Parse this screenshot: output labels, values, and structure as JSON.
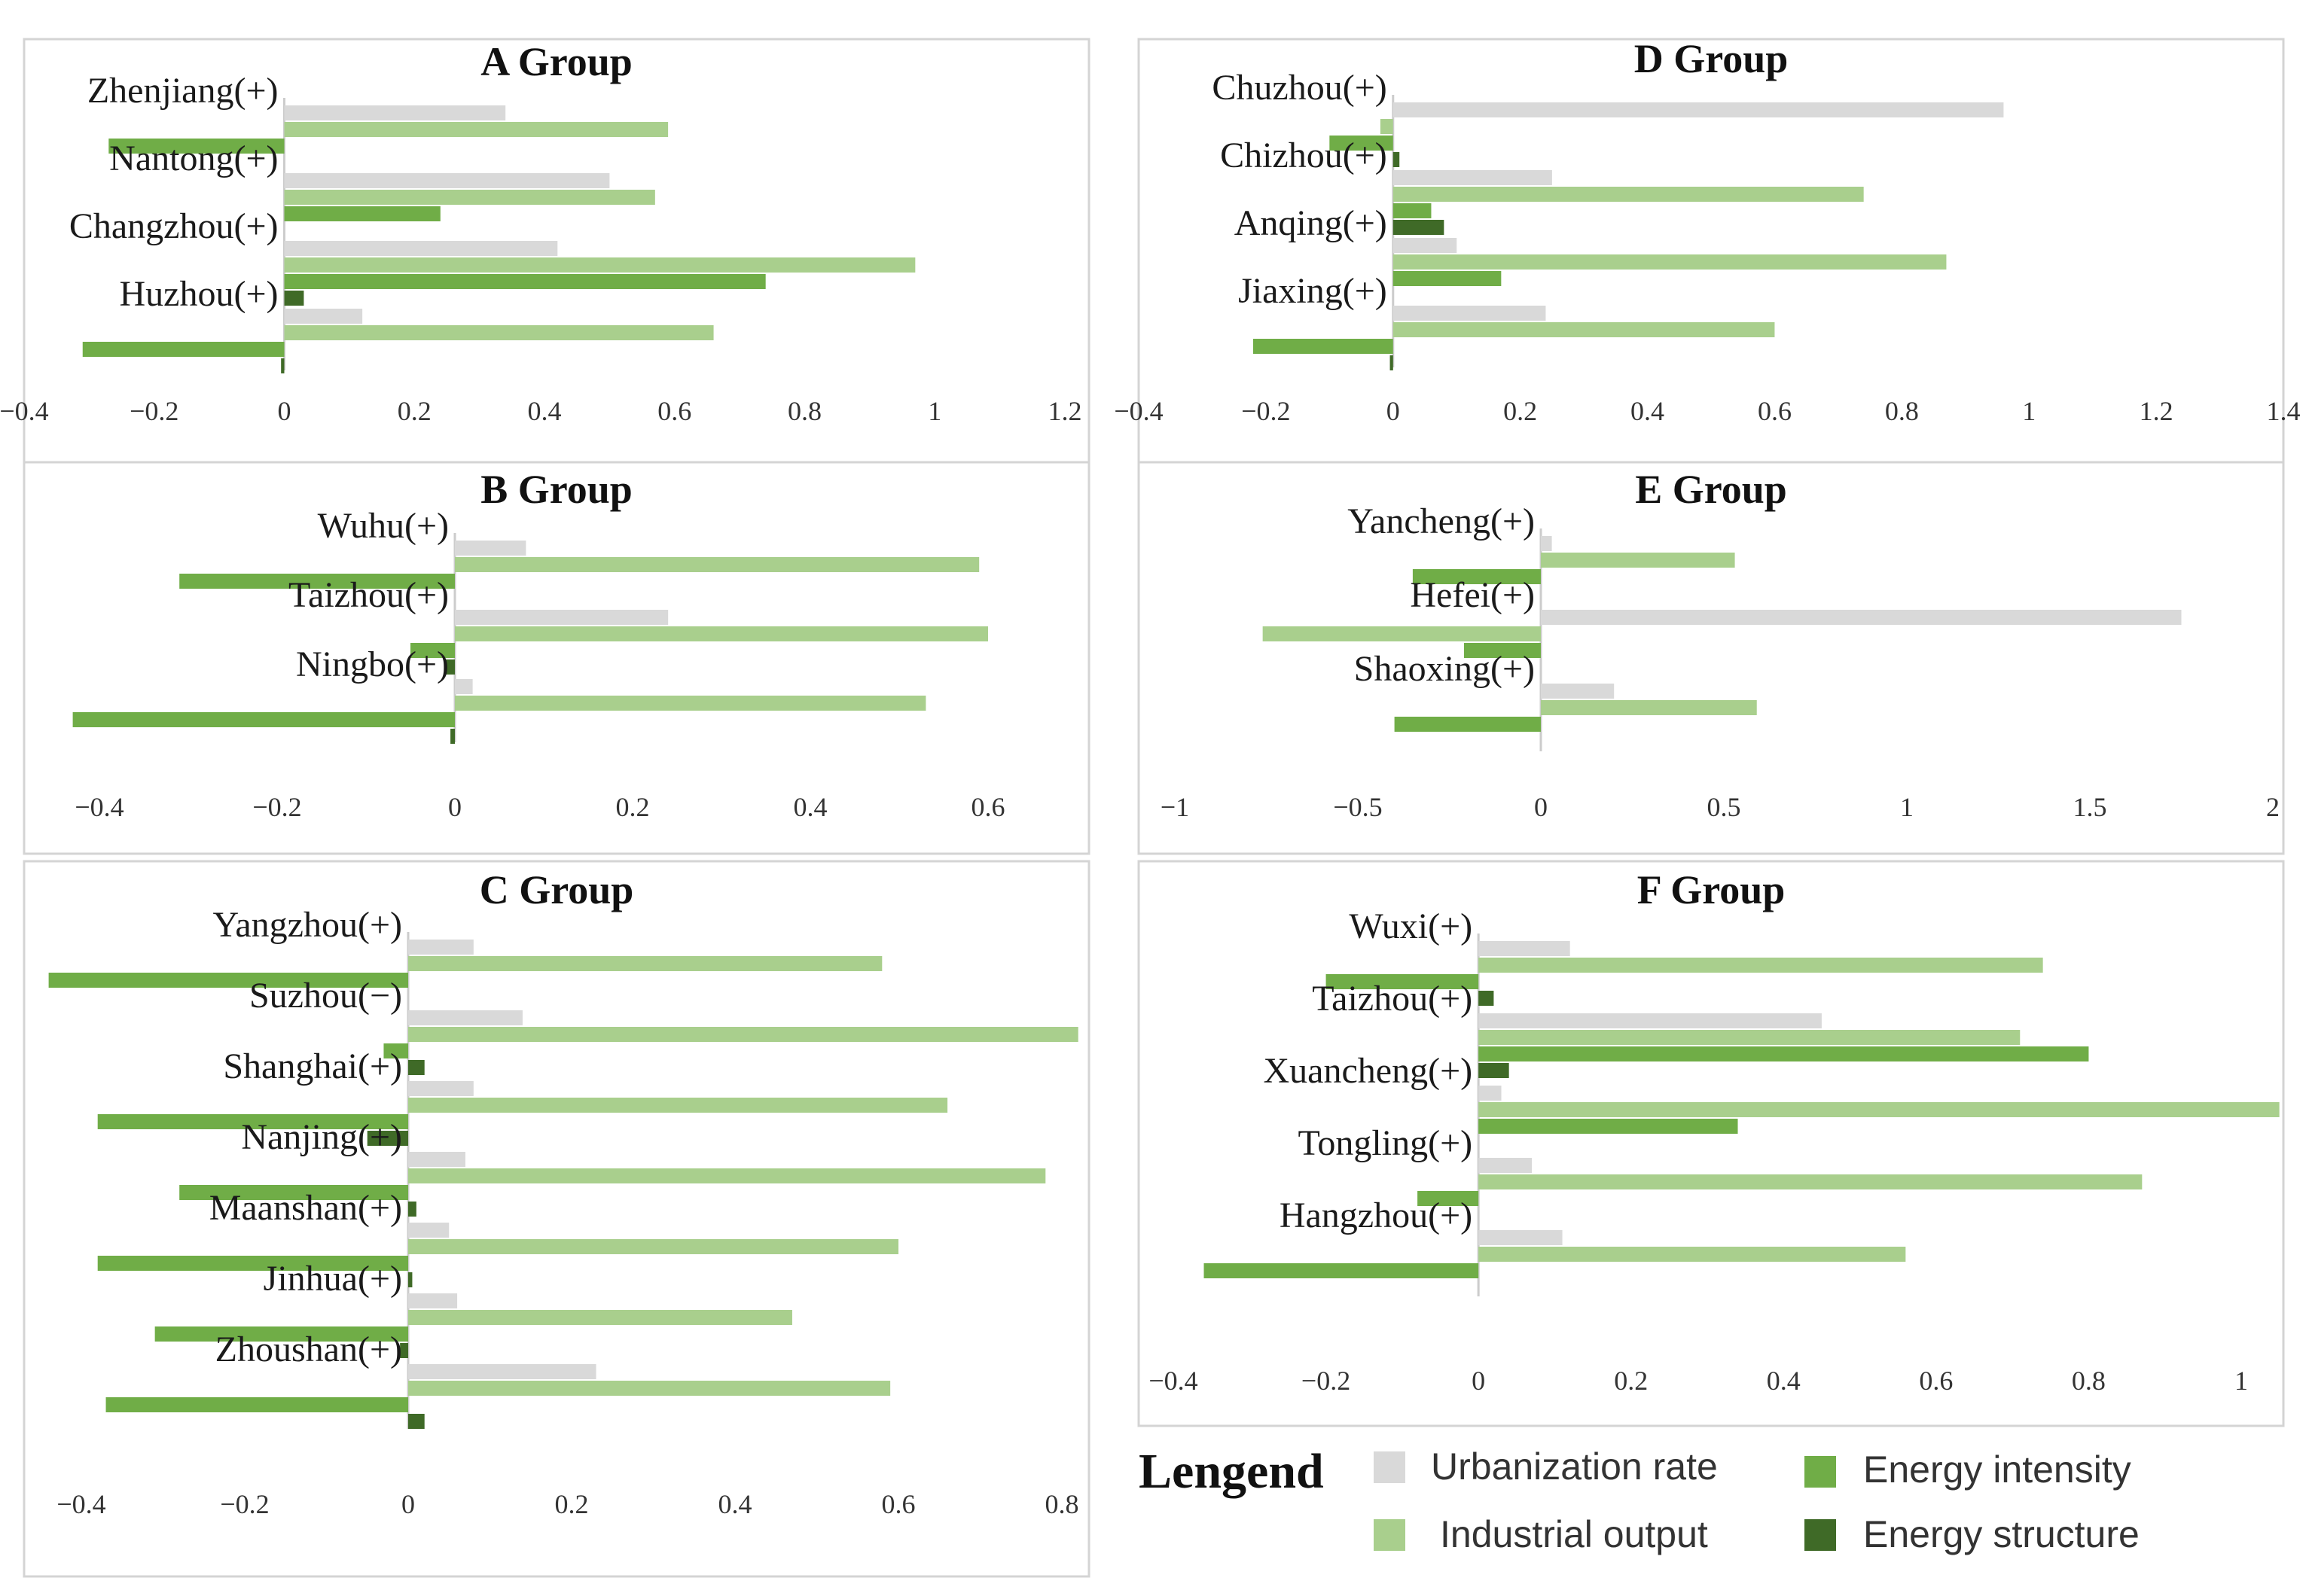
{
  "legend": {
    "title": "Lengend",
    "items": [
      {
        "label": "Urbanization rate",
        "color": "#d9d9d9"
      },
      {
        "label": "Industrial output",
        "color": "#a9cf8d"
      },
      {
        "label": "Energy intensity",
        "color": "#70ad47"
      },
      {
        "label": "Energy structure",
        "color": "#3f6a27"
      }
    ]
  },
  "chart_data": [
    {
      "type": "bar",
      "orientation": "horizontal",
      "title": "A Group",
      "categories": [
        "Zhenjiang(+)",
        "Nantong(+)",
        "Changzhou(+)",
        "Huzhou(+)"
      ],
      "xlim": [
        -0.4,
        1.2
      ],
      "ticks": [
        -0.4,
        -0.2,
        0,
        0.2,
        0.4,
        0.6,
        0.8,
        1,
        1.2
      ],
      "tick_labels": [
        "−0.4",
        "−0.2",
        "0",
        "0.2",
        "0.4",
        "0.6",
        "0.8",
        "1",
        "1.2"
      ],
      "series": [
        {
          "name": "Urbanization rate",
          "values": [
            0.34,
            0.5,
            0.42,
            0.12
          ]
        },
        {
          "name": "Industrial output",
          "values": [
            0.59,
            0.57,
            0.97,
            0.66
          ]
        },
        {
          "name": "Energy intensity",
          "values": [
            -0.27,
            0.24,
            0.74,
            -0.31
          ]
        },
        {
          "name": "Energy structure",
          "values": [
            0.0,
            0.0,
            0.03,
            -0.005
          ]
        }
      ]
    },
    {
      "type": "bar",
      "orientation": "horizontal",
      "title": "D Group",
      "categories": [
        "Chuzhou(+)",
        "Chizhou(+)",
        "Anqing(+)",
        "Jiaxing(+)"
      ],
      "xlim": [
        -0.4,
        1.4
      ],
      "ticks": [
        -0.4,
        -0.2,
        0,
        0.2,
        0.4,
        0.6,
        0.8,
        1,
        1.2,
        1.4
      ],
      "tick_labels": [
        "−0.4",
        "−0.2",
        "0",
        "0.2",
        "0.4",
        "0.6",
        "0.8",
        "1",
        "1.2",
        "1.4"
      ],
      "series": [
        {
          "name": "Urbanization rate",
          "values": [
            0.96,
            0.25,
            0.1,
            0.24
          ]
        },
        {
          "name": "Industrial output",
          "values": [
            -0.02,
            0.74,
            0.87,
            0.6
          ]
        },
        {
          "name": "Energy intensity",
          "values": [
            -0.1,
            0.06,
            0.17,
            -0.22
          ]
        },
        {
          "name": "Energy structure",
          "values": [
            0.01,
            0.08,
            0.0,
            -0.005
          ]
        }
      ]
    },
    {
      "type": "bar",
      "orientation": "horizontal",
      "title": "B Group",
      "categories": [
        "Wuhu(+)",
        "Taizhou(+)",
        "Ningbo(+)"
      ],
      "xlim": [
        -0.4,
        0.6
      ],
      "ticks": [
        -0.4,
        -0.2,
        0,
        0.2,
        0.4,
        0.6
      ],
      "tick_labels": [
        "−0.4",
        "−0.2",
        "0",
        "0.2",
        "0.4",
        "0.6"
      ],
      "series": [
        {
          "name": "Urbanization rate",
          "values": [
            0.08,
            0.24,
            0.02
          ]
        },
        {
          "name": "Industrial output",
          "values": [
            0.59,
            0.6,
            0.53
          ]
        },
        {
          "name": "Energy intensity",
          "values": [
            -0.31,
            -0.05,
            -0.43
          ]
        },
        {
          "name": "Energy structure",
          "values": [
            0.0,
            -0.01,
            -0.005
          ]
        }
      ]
    },
    {
      "type": "bar",
      "orientation": "horizontal",
      "title": "E Group",
      "categories": [
        "Yancheng(+)",
        "Hefei(+)",
        "Shaoxing(+)"
      ],
      "xlim": [
        -1,
        2
      ],
      "ticks": [
        -1,
        -0.5,
        0,
        0.5,
        1,
        1.5,
        2
      ],
      "tick_labels": [
        "−1",
        "−0.5",
        "0",
        "0.5",
        "1",
        "1.5",
        "2"
      ],
      "series": [
        {
          "name": "Urbanization rate",
          "values": [
            0.03,
            1.75,
            0.2
          ]
        },
        {
          "name": "Industrial output",
          "values": [
            0.53,
            -0.76,
            0.59
          ]
        },
        {
          "name": "Energy intensity",
          "values": [
            -0.35,
            -0.21,
            -0.4
          ]
        },
        {
          "name": "Energy structure",
          "values": [
            0.0,
            0.0,
            0.0
          ]
        }
      ]
    },
    {
      "type": "bar",
      "orientation": "horizontal",
      "title": "C Group",
      "categories": [
        "Yangzhou(+)",
        "Suzhou(−)",
        "Shanghai(+)",
        "Nanjing(+)",
        "Maanshan(+)",
        "Jinhua(+)",
        "Zhoushan(+)"
      ],
      "xlim": [
        -0.4,
        0.8
      ],
      "ticks": [
        -0.4,
        -0.2,
        0,
        0.2,
        0.4,
        0.6,
        0.8
      ],
      "tick_labels": [
        "−0.4",
        "−0.2",
        "0",
        "0.2",
        "0.4",
        "0.6",
        "0.8"
      ],
      "series": [
        {
          "name": "Urbanization rate",
          "values": [
            0.08,
            0.14,
            0.08,
            0.07,
            0.05,
            0.06,
            0.23
          ]
        },
        {
          "name": "Industrial output",
          "values": [
            0.58,
            0.82,
            0.66,
            0.78,
            0.6,
            0.47,
            0.59
          ]
        },
        {
          "name": "Energy intensity",
          "values": [
            -0.44,
            -0.03,
            -0.38,
            -0.28,
            -0.38,
            -0.31,
            -0.37
          ]
        },
        {
          "name": "Energy structure",
          "values": [
            0.0,
            0.02,
            -0.05,
            0.01,
            0.005,
            -0.01,
            0.02
          ]
        }
      ]
    },
    {
      "type": "bar",
      "orientation": "horizontal",
      "title": "F Group",
      "categories": [
        "Wuxi(+)",
        "Taizhou(+)",
        "Xuancheng(+)",
        "Tongling(+)",
        "Hangzhou(+)"
      ],
      "xlim": [
        -0.4,
        1.0
      ],
      "ticks": [
        -0.4,
        -0.2,
        0,
        0.2,
        0.4,
        0.6,
        0.8,
        1
      ],
      "tick_labels": [
        "−0.4",
        "−0.2",
        "0",
        "0.2",
        "0.4",
        "0.6",
        "0.8",
        "1"
      ],
      "series": [
        {
          "name": "Urbanization rate",
          "values": [
            0.12,
            0.45,
            0.03,
            0.07,
            0.11
          ]
        },
        {
          "name": "Industrial output",
          "values": [
            0.74,
            0.71,
            1.05,
            0.87,
            0.56
          ]
        },
        {
          "name": "Energy intensity",
          "values": [
            -0.2,
            0.8,
            0.34,
            -0.08,
            -0.36
          ]
        },
        {
          "name": "Energy structure",
          "values": [
            0.02,
            0.04,
            0.0,
            0.0,
            0.0
          ]
        }
      ]
    }
  ]
}
